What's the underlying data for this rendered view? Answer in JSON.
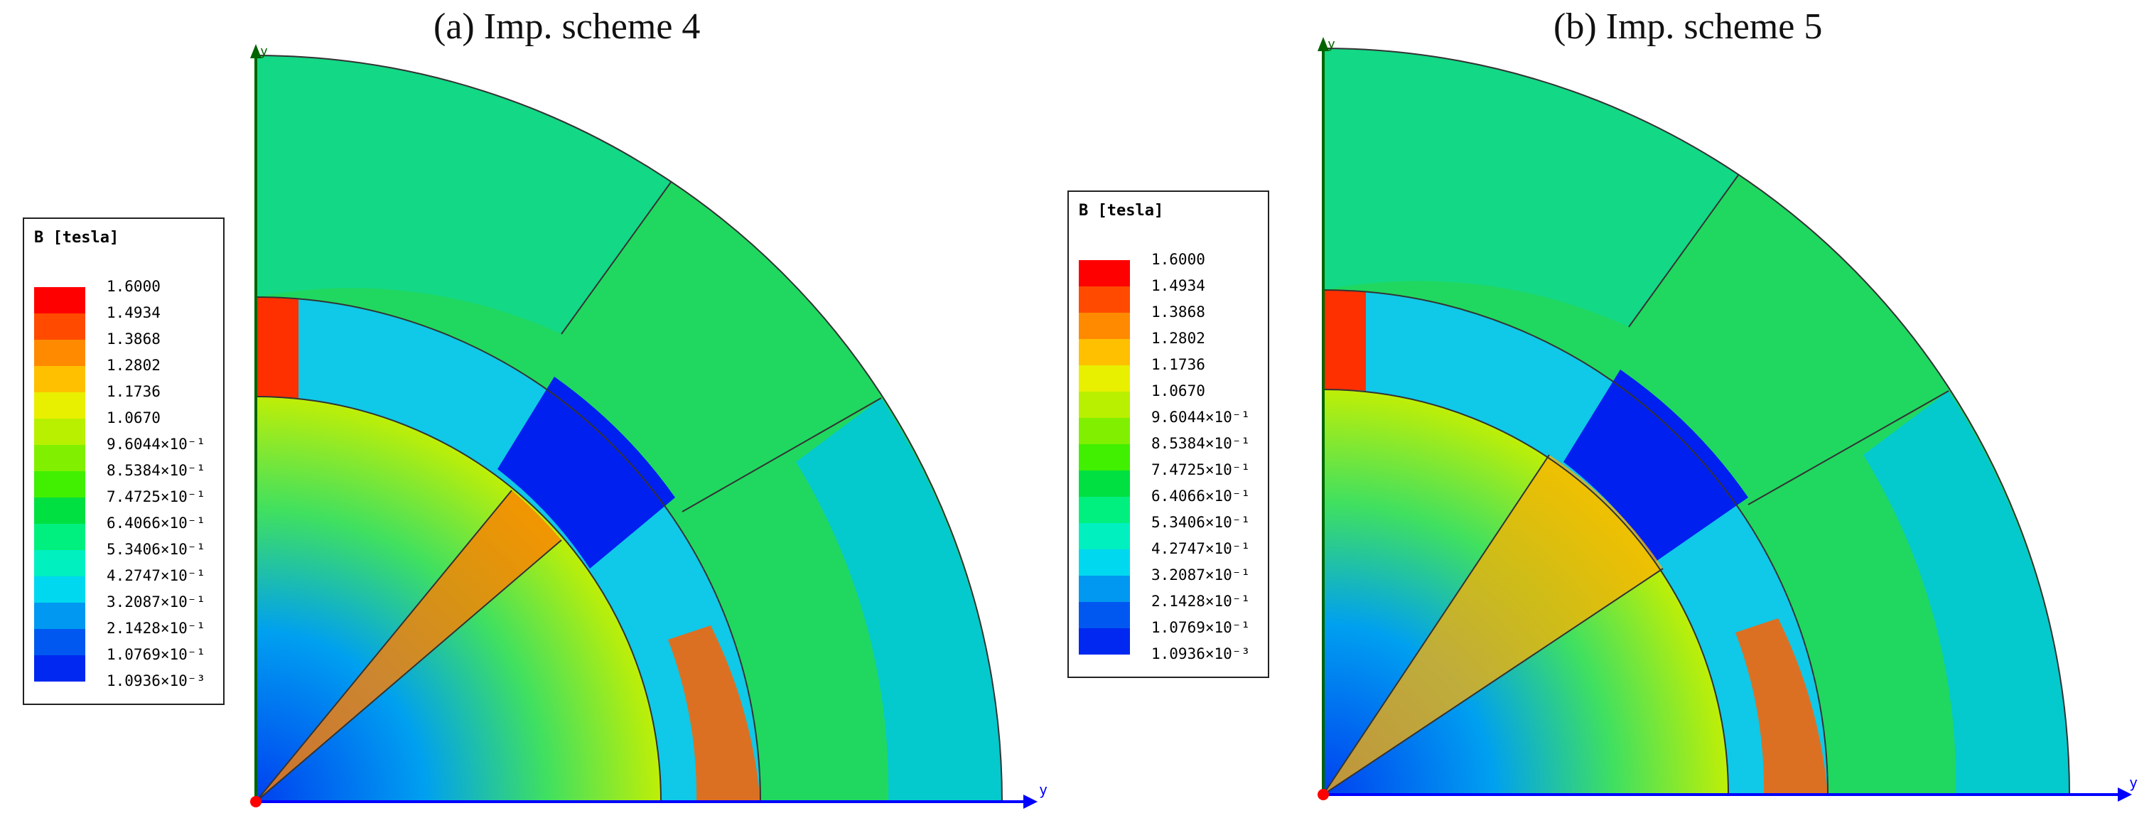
{
  "panels": [
    {
      "title": "(a) Imp. scheme 4",
      "axis_label": "y",
      "axis_label_top": "y"
    },
    {
      "title": "(b) Imp. scheme 5",
      "axis_label": "y",
      "axis_label_top": "y"
    }
  ],
  "legend": {
    "title": "B [tesla]",
    "values": [
      "1.6000",
      "1.4934",
      "1.3868",
      "1.2802",
      "1.1736",
      "1.0670",
      "9.6044×10⁻¹",
      "8.5384×10⁻¹",
      "7.4725×10⁻¹",
      "6.4066×10⁻¹",
      "5.3406×10⁻¹",
      "4.2747×10⁻¹",
      "3.2087×10⁻¹",
      "2.1428×10⁻¹",
      "1.0769×10⁻¹",
      "1.0936×10⁻³"
    ],
    "colors": [
      "#ff0000",
      "#ff4a00",
      "#ff8a00",
      "#ffc000",
      "#e8f000",
      "#b8f000",
      "#80f000",
      "#40f000",
      "#00e040",
      "#00f080",
      "#00f0c0",
      "#00d8f0",
      "#0098f0",
      "#0058f0",
      "#0028f0",
      "#0000f0"
    ]
  }
}
